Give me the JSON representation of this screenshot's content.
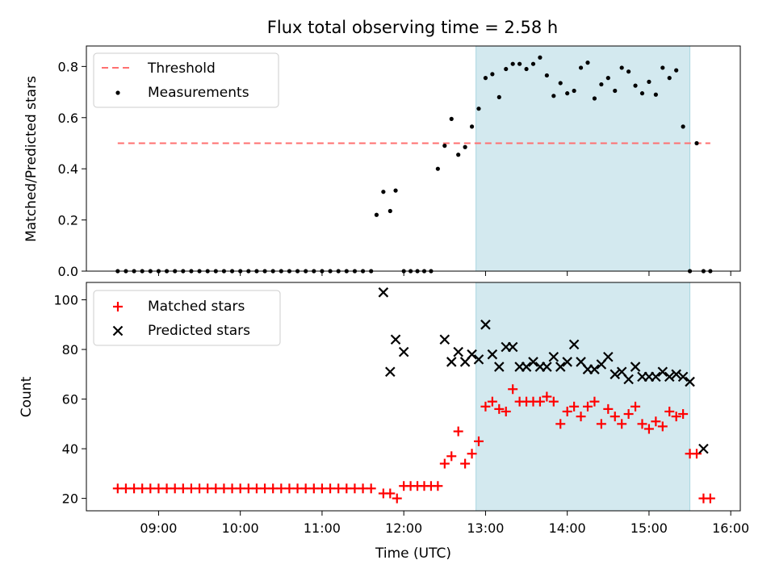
{
  "chart_data": [
    {
      "type": "scatter",
      "title": "Flux total observing time = 2.58 h",
      "ylabel": "Matched/Predicted stars",
      "ylim": [
        0,
        0.88
      ],
      "yticks": [
        0.0,
        0.2,
        0.4,
        0.6,
        0.8
      ],
      "ytick_labels": [
        "0.0",
        "0.2",
        "0.4",
        "0.6",
        "0.8"
      ],
      "legend": {
        "position": "upper-left",
        "threshold_label": "Threshold",
        "measurements_label": "Measurements"
      },
      "threshold": {
        "value": 0.5,
        "x_start": "08:30",
        "x_end": "15:45",
        "color": "#ff7070"
      },
      "highlight_span": {
        "start": "12:53",
        "end": "15:30",
        "color": "#d3e9ef"
      },
      "series": [
        {
          "name": "Measurements",
          "color": "#000000",
          "x": [
            "08:30",
            "08:36",
            "08:42",
            "08:48",
            "08:54",
            "09:00",
            "09:06",
            "09:12",
            "09:18",
            "09:24",
            "09:30",
            "09:36",
            "09:42",
            "09:48",
            "09:54",
            "10:00",
            "10:06",
            "10:12",
            "10:18",
            "10:24",
            "10:30",
            "10:36",
            "10:42",
            "10:48",
            "10:54",
            "11:00",
            "11:06",
            "11:12",
            "11:18",
            "11:24",
            "11:30",
            "11:36",
            "11:40",
            "11:45",
            "11:50",
            "11:54",
            "12:00",
            "12:05",
            "12:10",
            "12:15",
            "12:20",
            "12:25",
            "12:30",
            "12:35",
            "12:40",
            "12:45",
            "12:50",
            "12:55",
            "13:00",
            "13:05",
            "13:10",
            "13:15",
            "13:20",
            "13:25",
            "13:30",
            "13:35",
            "13:40",
            "13:45",
            "13:50",
            "13:55",
            "14:00",
            "14:05",
            "14:10",
            "14:15",
            "14:20",
            "14:25",
            "14:30",
            "14:35",
            "14:40",
            "14:45",
            "14:50",
            "14:55",
            "15:00",
            "15:05",
            "15:10",
            "15:15",
            "15:20",
            "15:25",
            "15:30",
            "15:35",
            "15:40",
            "15:45"
          ],
          "y": [
            0,
            0,
            0,
            0,
            0,
            0,
            0,
            0,
            0,
            0,
            0,
            0,
            0,
            0,
            0,
            0,
            0,
            0,
            0,
            0,
            0,
            0,
            0,
            0,
            0,
            0,
            0,
            0,
            0,
            0,
            0,
            0,
            0.22,
            0.31,
            0.235,
            0.315,
            0,
            0,
            0,
            0,
            0,
            0.4,
            0.49,
            0.595,
            0.455,
            0.485,
            0.565,
            0.635,
            0.755,
            0.77,
            0.68,
            0.79,
            0.81,
            0.81,
            0.79,
            0.81,
            0.835,
            0.765,
            0.685,
            0.735,
            0.695,
            0.705,
            0.795,
            0.815,
            0.675,
            0.73,
            0.755,
            0.705,
            0.795,
            0.78,
            0.725,
            0.695,
            0.74,
            0.69,
            0.795,
            0.755,
            0.785,
            0.565,
            0,
            0.5,
            0,
            0
          ]
        }
      ]
    },
    {
      "type": "scatter",
      "xlabel": "Time (UTC)",
      "ylabel": "Count",
      "ylim": [
        15,
        107
      ],
      "yticks": [
        20,
        40,
        60,
        80,
        100
      ],
      "ytick_labels": [
        "20",
        "40",
        "60",
        "80",
        "100"
      ],
      "xticks": [
        "09:00",
        "10:00",
        "11:00",
        "12:00",
        "13:00",
        "14:00",
        "15:00",
        "16:00"
      ],
      "xlim": [
        "08:07",
        "16:07"
      ],
      "legend": {
        "position": "upper-left"
      },
      "highlight_span": {
        "start": "12:53",
        "end": "15:30",
        "color": "#d3e9ef"
      },
      "series": [
        {
          "name": "Matched stars",
          "marker": "+",
          "color": "#ff0000",
          "x": [
            "08:30",
            "08:36",
            "08:42",
            "08:48",
            "08:54",
            "09:00",
            "09:06",
            "09:12",
            "09:18",
            "09:24",
            "09:30",
            "09:36",
            "09:42",
            "09:48",
            "09:54",
            "10:00",
            "10:06",
            "10:12",
            "10:18",
            "10:24",
            "10:30",
            "10:36",
            "10:42",
            "10:48",
            "10:54",
            "11:00",
            "11:06",
            "11:12",
            "11:18",
            "11:24",
            "11:30",
            "11:36",
            "11:45",
            "11:50",
            "11:55",
            "12:00",
            "12:05",
            "12:10",
            "12:15",
            "12:20",
            "12:25",
            "12:30",
            "12:35",
            "12:40",
            "12:45",
            "12:50",
            "12:55",
            "13:00",
            "13:05",
            "13:10",
            "13:15",
            "13:20",
            "13:25",
            "13:30",
            "13:35",
            "13:40",
            "13:45",
            "13:50",
            "13:55",
            "14:00",
            "14:05",
            "14:10",
            "14:15",
            "14:20",
            "14:25",
            "14:30",
            "14:35",
            "14:40",
            "14:45",
            "14:50",
            "14:55",
            "15:00",
            "15:05",
            "15:10",
            "15:15",
            "15:20",
            "15:25",
            "15:30",
            "15:35",
            "15:40",
            "15:45"
          ],
          "y": [
            24,
            24,
            24,
            24,
            24,
            24,
            24,
            24,
            24,
            24,
            24,
            24,
            24,
            24,
            24,
            24,
            24,
            24,
            24,
            24,
            24,
            24,
            24,
            24,
            24,
            24,
            24,
            24,
            24,
            24,
            24,
            24,
            22,
            22,
            20,
            25,
            25,
            25,
            25,
            25,
            25,
            34,
            37,
            47,
            34,
            38,
            43,
            57,
            59,
            56,
            55,
            64,
            59,
            59,
            59,
            59,
            61,
            59,
            50,
            55,
            57,
            53,
            57,
            59,
            50,
            56,
            53,
            50,
            54,
            57,
            50,
            48,
            51,
            49,
            55,
            53,
            54,
            38,
            38,
            20,
            20
          ]
        },
        {
          "name": "Predicted stars",
          "marker": "x",
          "color": "#000000",
          "x": [
            "11:45",
            "11:50",
            "11:54",
            "12:00",
            "12:30",
            "12:35",
            "12:40",
            "12:45",
            "12:50",
            "12:55",
            "13:00",
            "13:05",
            "13:10",
            "13:15",
            "13:20",
            "13:25",
            "13:30",
            "13:35",
            "13:40",
            "13:45",
            "13:50",
            "13:55",
            "14:00",
            "14:05",
            "14:10",
            "14:15",
            "14:20",
            "14:25",
            "14:30",
            "14:35",
            "14:40",
            "14:45",
            "14:50",
            "14:55",
            "15:00",
            "15:05",
            "15:10",
            "15:15",
            "15:20",
            "15:25",
            "15:30",
            "15:40"
          ],
          "y": [
            103,
            71,
            84,
            79,
            84,
            75,
            79,
            75,
            78,
            76,
            90,
            78,
            73,
            81,
            81,
            73,
            73,
            75,
            73,
            73,
            77,
            73,
            75,
            82,
            75,
            72,
            72,
            74,
            77,
            70,
            71,
            68,
            73,
            69,
            69,
            69,
            71,
            69,
            70,
            69,
            67,
            40
          ]
        }
      ]
    }
  ]
}
